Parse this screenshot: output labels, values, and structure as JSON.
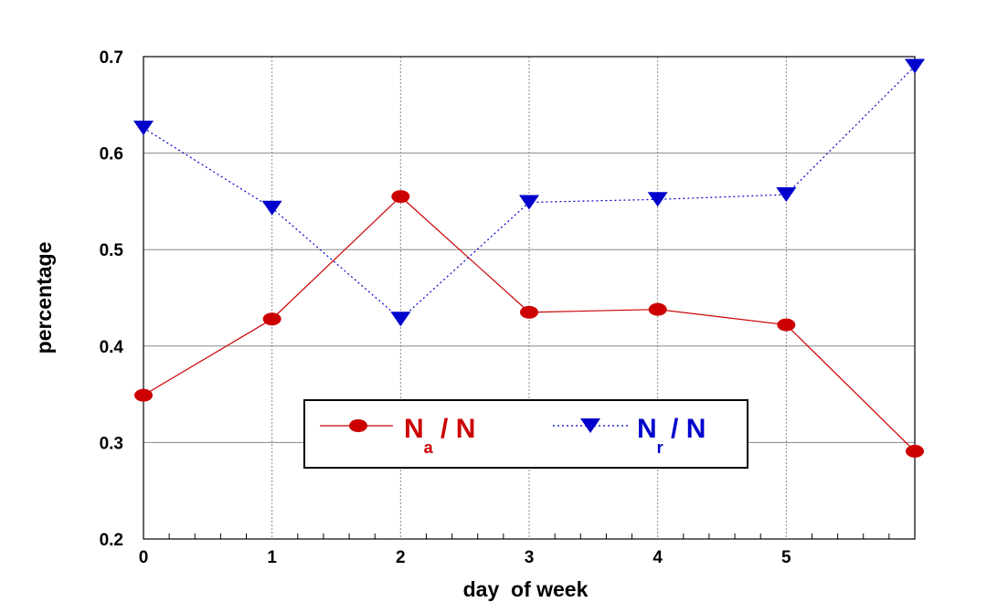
{
  "chart_data": {
    "type": "line",
    "xlabel": "day  of week",
    "ylabel": "percentage",
    "xlim": [
      0,
      6
    ],
    "ylim": [
      0.2,
      0.7
    ],
    "x_ticks": [
      "0",
      "1",
      "2",
      "3",
      "4",
      "5"
    ],
    "y_ticks": [
      "0.2",
      "0.3",
      "0.4",
      "0.5",
      "0.6",
      "0.7"
    ],
    "grid": true,
    "legend_position": "bottom-center",
    "series": [
      {
        "name": "Na / N",
        "legend_main": "N",
        "legend_sub": "a",
        "legend_tail": " / N",
        "color": "#cc0000",
        "marker": "circle",
        "line_style": "solid",
        "x": [
          0,
          1,
          2,
          3,
          4,
          5,
          6
        ],
        "y": [
          0.349,
          0.428,
          0.555,
          0.435,
          0.438,
          0.422,
          0.291
        ]
      },
      {
        "name": "Nr / N",
        "legend_main": "N",
        "legend_sub": "r",
        "legend_tail": " / N",
        "color": "#0000cc",
        "marker": "triangle-down",
        "line_style": "dotted",
        "x": [
          0,
          1,
          2,
          3,
          4,
          5,
          6
        ],
        "y": [
          0.626,
          0.543,
          0.428,
          0.549,
          0.552,
          0.557,
          0.69
        ]
      }
    ]
  }
}
